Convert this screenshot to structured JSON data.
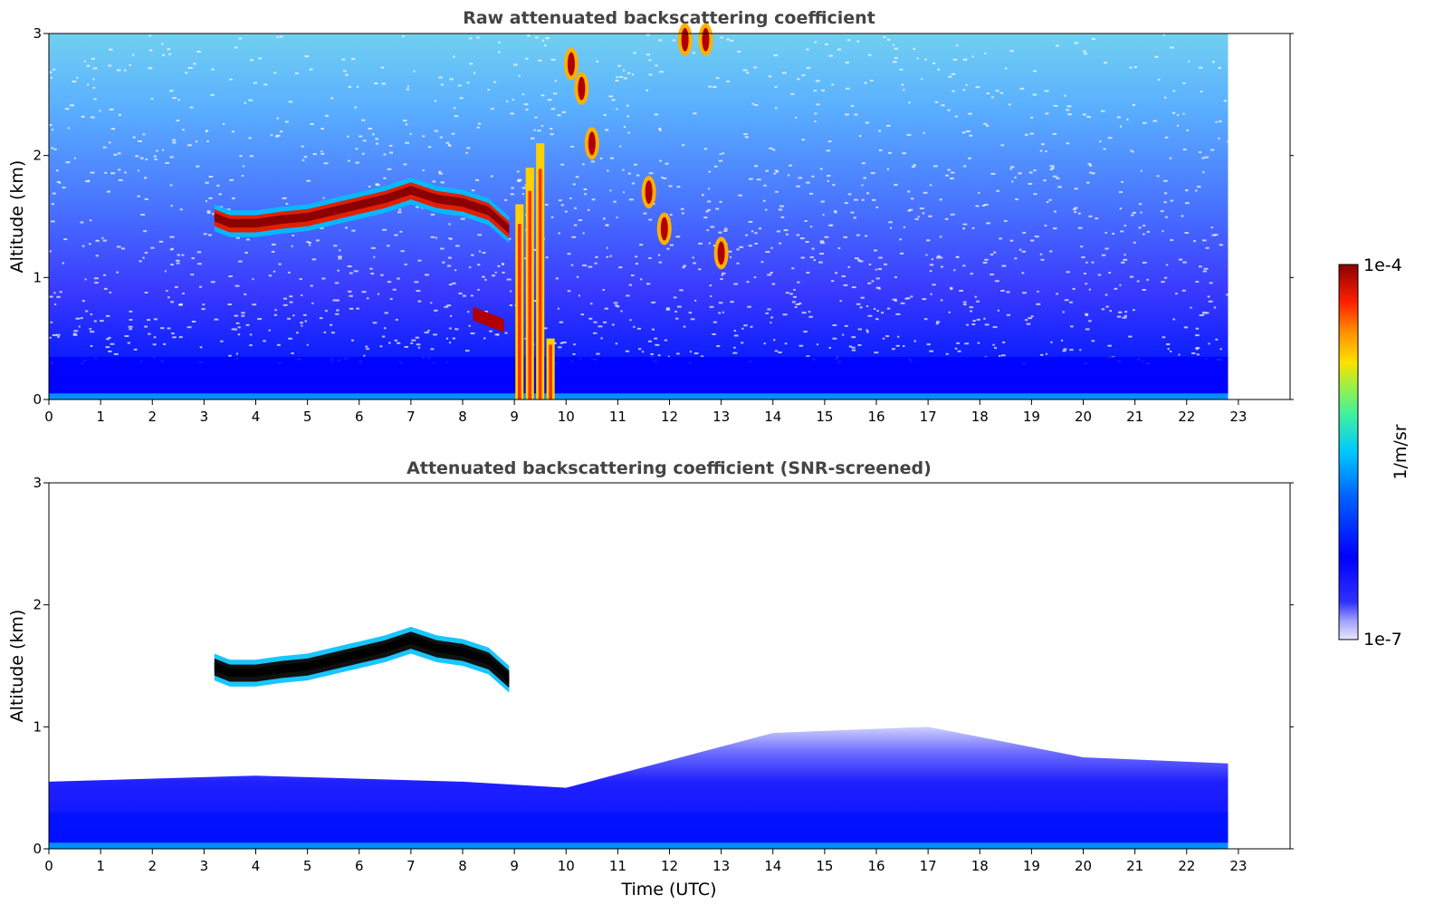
{
  "chart_data": [
    {
      "type": "heatmap",
      "title": "Raw attenuated backscattering coefficient",
      "xlabel": "",
      "ylabel": "Altitude (km)",
      "xlim": [
        0,
        24
      ],
      "ylim": [
        0,
        3
      ],
      "x_ticks": [
        "0",
        "1",
        "2",
        "3",
        "4",
        "5",
        "6",
        "7",
        "8",
        "9",
        "10",
        "11",
        "12",
        "13",
        "14",
        "15",
        "16",
        "17",
        "18",
        "19",
        "20",
        "21",
        "22",
        "23"
      ],
      "y_ticks": [
        "0",
        "1",
        "2",
        "3"
      ],
      "data_extent_x": [
        0,
        22.8
      ],
      "colorscale": "log",
      "features": [
        {
          "kind": "cloud-layer",
          "x": [
            3.2,
            3.5,
            4,
            4.5,
            5,
            5.5,
            6,
            6.5,
            7,
            7.5,
            8,
            8.5,
            8.9
          ],
          "y": [
            1.5,
            1.45,
            1.45,
            1.48,
            1.5,
            1.55,
            1.6,
            1.65,
            1.72,
            1.65,
            1.62,
            1.55,
            1.4
          ],
          "intensity": 1.0
        },
        {
          "kind": "precipitation",
          "x": [
            9.1,
            9.3,
            9.5,
            9.7
          ],
          "y": [
            1.6,
            1.9,
            2.1,
            0.5
          ],
          "intensity": 0.85
        },
        {
          "kind": "cloud-fragment",
          "x": [
            10.1,
            10.3,
            10.5,
            11.6,
            11.9,
            12.3,
            12.7,
            13.0
          ],
          "y": [
            2.75,
            2.55,
            2.1,
            1.7,
            1.4,
            2.95,
            2.95,
            1.2
          ],
          "intensity": 0.9
        },
        {
          "kind": "aerosol-layer",
          "x": [
            8.2,
            8.5,
            8.8
          ],
          "y": [
            0.7,
            0.65,
            0.6
          ],
          "intensity": 0.95
        }
      ]
    },
    {
      "type": "heatmap",
      "title": "Attenuated backscattering coefficient (SNR-screened)",
      "xlabel": "Time (UTC)",
      "ylabel": "Altitude (km)",
      "xlim": [
        0,
        24
      ],
      "ylim": [
        0,
        3
      ],
      "x_ticks": [
        "0",
        "1",
        "2",
        "3",
        "4",
        "5",
        "6",
        "7",
        "8",
        "9",
        "10",
        "11",
        "12",
        "13",
        "14",
        "15",
        "16",
        "17",
        "18",
        "19",
        "20",
        "21",
        "22",
        "23"
      ],
      "y_ticks": [
        "0",
        "1",
        "2",
        "3"
      ],
      "data_extent_x": [
        0,
        22.8
      ],
      "colorscale": "log",
      "features": [
        {
          "kind": "cloud-layer",
          "x": [
            3.2,
            3.5,
            4,
            4.5,
            5,
            5.5,
            6,
            6.5,
            7,
            7.5,
            8,
            8.5,
            8.9
          ],
          "y": [
            1.5,
            1.45,
            1.45,
            1.48,
            1.5,
            1.55,
            1.6,
            1.65,
            1.72,
            1.65,
            1.62,
            1.55,
            1.4
          ],
          "intensity": 1.0
        },
        {
          "kind": "boundary-layer",
          "x": [
            0,
            4,
            8,
            10,
            14,
            17,
            20,
            22.8
          ],
          "y": [
            0.55,
            0.6,
            0.55,
            0.5,
            0.95,
            1.0,
            0.75,
            0.7
          ],
          "intensity": 0.35
        }
      ]
    }
  ],
  "colorbar": {
    "label": "1/m/sr",
    "max_label": "1e-4",
    "min_label": "1e-7",
    "colors": [
      "#e8e8ff",
      "#c8c8ff",
      "#a0a0ff",
      "#7070ff",
      "#3030ff",
      "#0000ff",
      "#0020ff",
      "#0060ff",
      "#00a0ff",
      "#00d0ff",
      "#00e8c0",
      "#40f080",
      "#a0f040",
      "#e0f000",
      "#ffd000",
      "#ff9000",
      "#ff5000",
      "#ff1000",
      "#d00000",
      "#8b0000"
    ]
  }
}
